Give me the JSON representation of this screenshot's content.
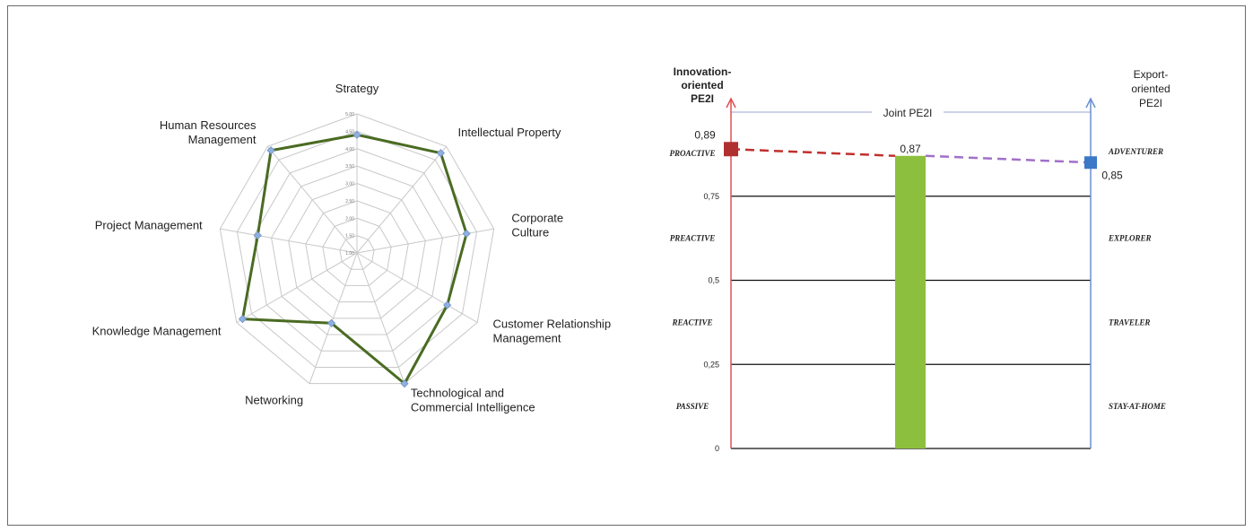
{
  "chart_data": [
    {
      "type": "radar",
      "categories": [
        "Strategy",
        "Intellectual Property",
        "Corporate Culture",
        "Customer Relationship Management",
        "Technological and Commercial Intelligence",
        "Networking",
        "Knowledge Management",
        "Project Management",
        "Human Resources Management"
      ],
      "category_lines": [
        [
          "Strategy"
        ],
        [
          "Intellectual Property"
        ],
        [
          "Corporate",
          "Culture"
        ],
        [
          "Customer Relationship",
          "Management"
        ],
        [
          "Technological and",
          "Commercial Intelligence"
        ],
        [
          "Networking"
        ],
        [
          "Knowledge Management"
        ],
        [
          "Project Management"
        ],
        [
          "Human Resources",
          "Management"
        ]
      ],
      "values": [
        4.4,
        4.75,
        4.2,
        4.0,
        5.0,
        3.15,
        4.8,
        3.9,
        4.85
      ],
      "rlim": [
        1,
        5
      ],
      "rticks": [
        "1.00",
        "1.50",
        "2.00",
        "2.50",
        "3.00",
        "3.50",
        "4.00",
        "4.50",
        "5.00"
      ],
      "line_color": "#4a6b22",
      "marker_color": "#8fb0e0",
      "grid_color": "#c8c8c8"
    },
    {
      "type": "bar",
      "categories": [
        "Joint PE2I"
      ],
      "values": [
        0.87
      ],
      "ylim": [
        0,
        1
      ],
      "yticks": [
        "0",
        "0,25",
        "0,5",
        "0,75"
      ],
      "left_axis_title": [
        "Innovation-",
        "oriented",
        "PE2I"
      ],
      "right_axis_title": [
        "Export-",
        "oriented",
        "PE2I"
      ],
      "left_axis_value": 0.89,
      "left_axis_value_label": "0,89",
      "right_axis_value": 0.85,
      "right_axis_value_label": "0,85",
      "bar_value_label": "0,87",
      "left_levels": [
        "PROACTIVE",
        "PREACTIVE",
        "REACTIVE",
        "PASSIVE"
      ],
      "right_levels": [
        "ADVENTURER",
        "EXPLORER",
        "TRAVELER",
        "STAY-AT-HOME"
      ],
      "colors": {
        "left_axis": "#e05050",
        "left_title": "#c0201e",
        "left_marker": "#b03030",
        "right_axis": "#6a8fd0",
        "right_title": "#5b9bd5",
        "right_marker": "#3a78c8",
        "bar": "#8dbf3e",
        "left_dash": "#c0302e",
        "right_dash": "#a070c8"
      }
    }
  ]
}
